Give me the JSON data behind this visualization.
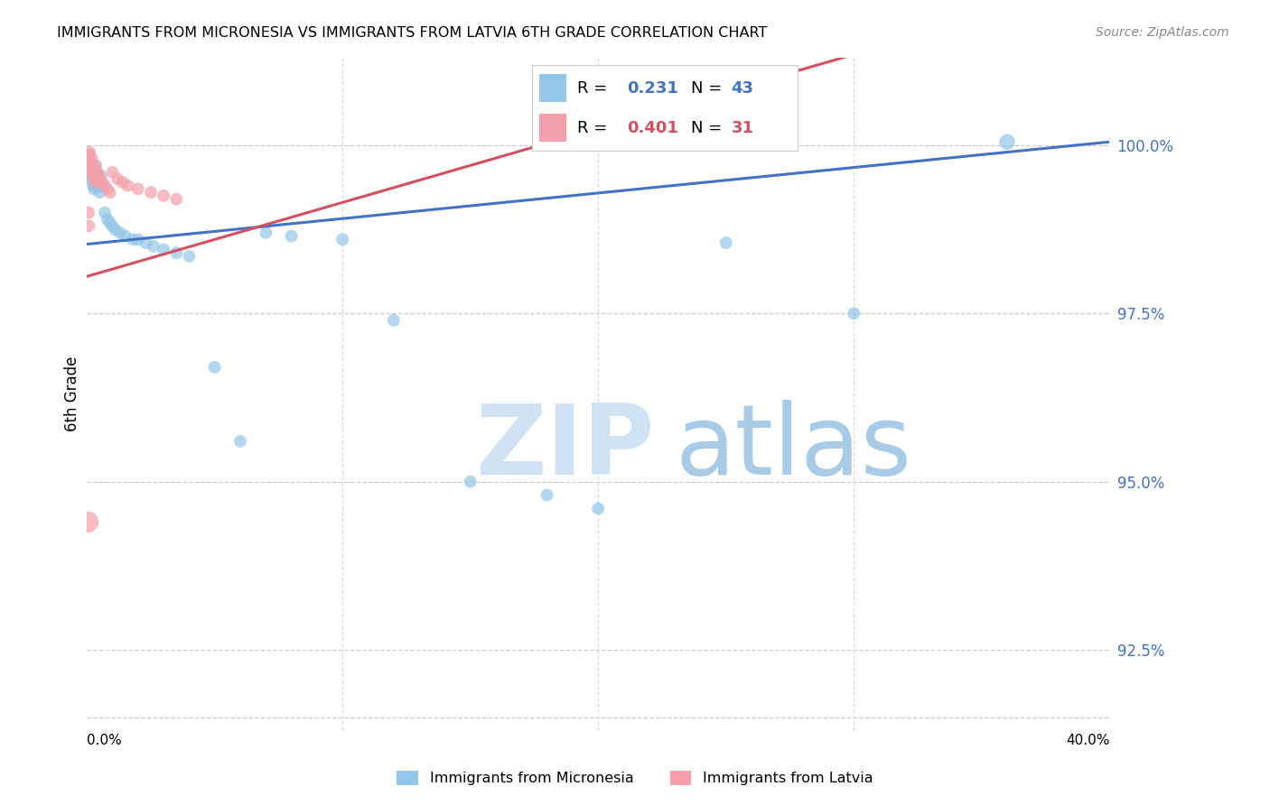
{
  "title": "IMMIGRANTS FROM MICRONESIA VS IMMIGRANTS FROM LATVIA 6TH GRADE CORRELATION CHART",
  "source": "Source: ZipAtlas.com",
  "ylabel": "6th Grade",
  "ylim": [
    91.3,
    101.3
  ],
  "xlim": [
    0.0,
    40.0
  ],
  "yticks": [
    92.5,
    95.0,
    97.5,
    100.0
  ],
  "ytick_labels": [
    "92.5%",
    "95.0%",
    "97.5%",
    "100.0%"
  ],
  "blue_R": "0.231",
  "blue_N": "43",
  "pink_R": "0.401",
  "pink_N": "31",
  "blue_color": "#93c6e8",
  "pink_color": "#f4a0aa",
  "trend_blue": "#4472c4",
  "trend_pink": "#d45060",
  "label_color": "#4472c4",
  "pink_label_color": "#d45060",
  "legend_label_blue": "Immigrants from Micronesia",
  "legend_label_pink": "Immigrants from Latvia",
  "blue_trend": [
    0.0,
    98.53,
    40.0,
    100.05
  ],
  "pink_trend": [
    0.0,
    98.05,
    40.0,
    102.45
  ],
  "blue_points": [
    [
      0.05,
      99.8
    ],
    [
      0.07,
      99.7
    ],
    [
      0.1,
      99.75
    ],
    [
      0.12,
      99.65
    ],
    [
      0.15,
      99.6
    ],
    [
      0.18,
      99.55
    ],
    [
      0.2,
      99.5
    ],
    [
      0.22,
      99.45
    ],
    [
      0.25,
      99.4
    ],
    [
      0.28,
      99.35
    ],
    [
      0.3,
      99.7
    ],
    [
      0.35,
      99.6
    ],
    [
      0.4,
      99.5
    ],
    [
      0.45,
      99.4
    ],
    [
      0.5,
      99.3
    ],
    [
      0.55,
      99.55
    ],
    [
      0.6,
      99.4
    ],
    [
      0.7,
      99.0
    ],
    [
      0.8,
      98.9
    ],
    [
      0.9,
      98.85
    ],
    [
      1.0,
      98.8
    ],
    [
      1.1,
      98.75
    ],
    [
      1.3,
      98.7
    ],
    [
      1.5,
      98.65
    ],
    [
      1.8,
      98.6
    ],
    [
      2.0,
      98.6
    ],
    [
      2.3,
      98.55
    ],
    [
      2.6,
      98.5
    ],
    [
      3.0,
      98.45
    ],
    [
      3.5,
      98.4
    ],
    [
      4.0,
      98.35
    ],
    [
      5.0,
      96.7
    ],
    [
      6.0,
      95.6
    ],
    [
      7.0,
      98.7
    ],
    [
      8.0,
      98.65
    ],
    [
      10.0,
      98.6
    ],
    [
      12.0,
      97.4
    ],
    [
      15.0,
      95.0
    ],
    [
      18.0,
      94.8
    ],
    [
      20.0,
      94.6
    ],
    [
      25.0,
      98.55
    ],
    [
      30.0,
      97.5
    ],
    [
      36.0,
      100.05
    ]
  ],
  "blue_sizes": [
    100,
    100,
    100,
    100,
    100,
    100,
    100,
    100,
    100,
    100,
    100,
    100,
    100,
    100,
    100,
    100,
    100,
    100,
    100,
    100,
    100,
    100,
    100,
    100,
    100,
    100,
    100,
    100,
    100,
    100,
    100,
    100,
    100,
    100,
    100,
    100,
    100,
    100,
    100,
    100,
    100,
    100,
    160
  ],
  "pink_points": [
    [
      0.04,
      99.85
    ],
    [
      0.06,
      99.8
    ],
    [
      0.08,
      99.75
    ],
    [
      0.1,
      99.9
    ],
    [
      0.12,
      99.85
    ],
    [
      0.15,
      99.7
    ],
    [
      0.18,
      99.65
    ],
    [
      0.2,
      99.8
    ],
    [
      0.22,
      99.6
    ],
    [
      0.25,
      99.55
    ],
    [
      0.28,
      99.5
    ],
    [
      0.32,
      99.45
    ],
    [
      0.35,
      99.7
    ],
    [
      0.4,
      99.6
    ],
    [
      0.45,
      99.55
    ],
    [
      0.5,
      99.5
    ],
    [
      0.6,
      99.45
    ],
    [
      0.7,
      99.4
    ],
    [
      0.8,
      99.35
    ],
    [
      0.9,
      99.3
    ],
    [
      1.0,
      99.6
    ],
    [
      1.2,
      99.5
    ],
    [
      1.4,
      99.45
    ],
    [
      1.6,
      99.4
    ],
    [
      2.0,
      99.35
    ],
    [
      2.5,
      99.3
    ],
    [
      3.0,
      99.25
    ],
    [
      3.5,
      99.2
    ],
    [
      0.06,
      99.0
    ],
    [
      0.08,
      98.8
    ],
    [
      0.05,
      94.4
    ]
  ],
  "pink_sizes": [
    100,
    100,
    100,
    100,
    100,
    100,
    100,
    100,
    100,
    100,
    100,
    100,
    100,
    100,
    100,
    100,
    100,
    100,
    100,
    100,
    100,
    100,
    100,
    100,
    100,
    100,
    100,
    100,
    100,
    100,
    280
  ]
}
